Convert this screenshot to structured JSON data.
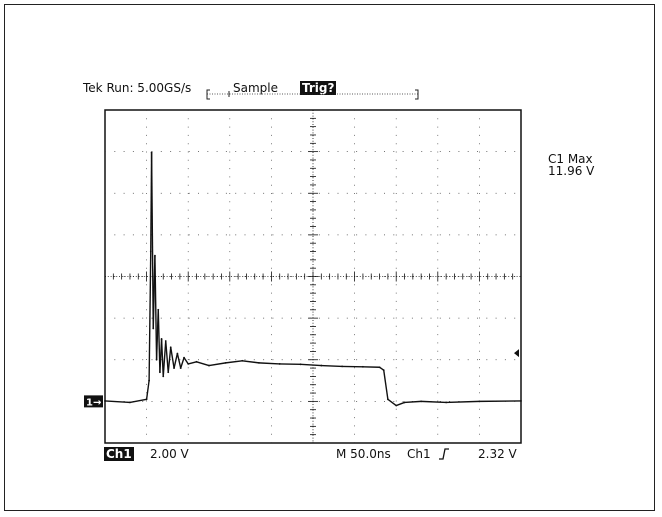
{
  "header": {
    "run_status": "Tek Run: 5.00GS/s",
    "acq_mode": "Sample",
    "trig_state": "Trig?"
  },
  "measurement": {
    "name": "C1 Max",
    "value": "11.96 V"
  },
  "footer": {
    "channel": "Ch1",
    "volts_per_div": "2.00 V",
    "timebase": "M 50.0ns",
    "trigger_source": "Ch1",
    "trigger_slope_icon": "rising-edge-icon",
    "trigger_level": "2.32 V"
  },
  "markers": {
    "channel_ground": "1→",
    "trigger_level_icon": "left-arrow-icon"
  },
  "chart_data": {
    "type": "line",
    "xlabel": "",
    "ylabel": "",
    "x_unit": "ns",
    "y_unit": "V",
    "xlim": [
      -50,
      450
    ],
    "ylim": [
      -2,
      14
    ],
    "grid": true,
    "series": [
      {
        "x": [
          -50,
          -20,
          0,
          3,
          5,
          6,
          8,
          10,
          12,
          14,
          16,
          18,
          20,
          23,
          26,
          29,
          33,
          37,
          41,
          45,
          50,
          60,
          75,
          95,
          115,
          135,
          160,
          185,
          210,
          235,
          260,
          280,
          285,
          290,
          300,
          310,
          330,
          360,
          400,
          450
        ],
        "y": [
          0.02,
          -0.05,
          0.1,
          1.0,
          7.2,
          11.96,
          3.5,
          7.0,
          2.0,
          4.4,
          1.4,
          3.0,
          1.2,
          2.9,
          1.4,
          2.6,
          1.6,
          2.3,
          1.6,
          2.1,
          1.8,
          1.9,
          1.72,
          1.85,
          1.95,
          1.85,
          1.8,
          1.78,
          1.72,
          1.68,
          1.66,
          1.64,
          1.5,
          0.1,
          -0.2,
          -0.05,
          0.0,
          -0.05,
          0.0,
          0.02
        ]
      }
    ]
  }
}
